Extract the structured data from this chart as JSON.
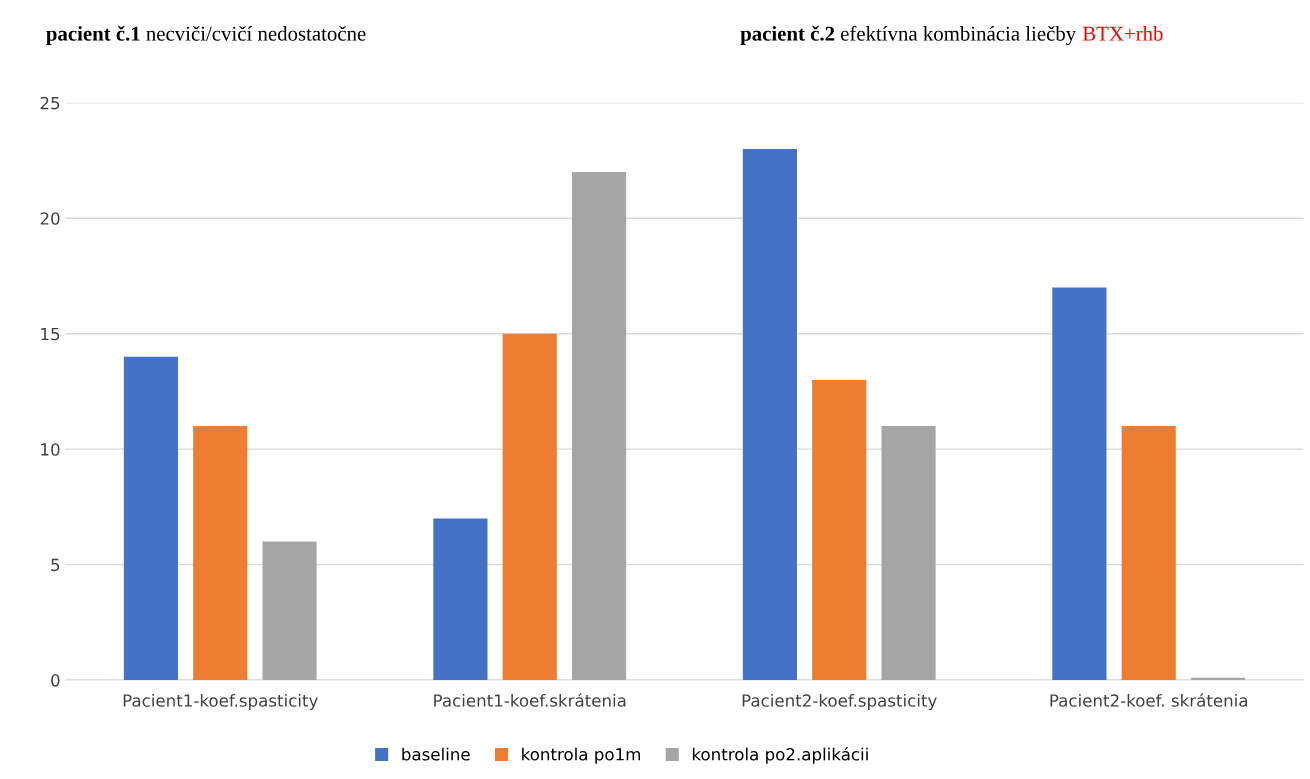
{
  "chart_data": {
    "type": "bar",
    "categories": [
      "Pacient1-koef.spasticity",
      "Pacient1-koef.skrátenia",
      "Pacient2-koef.spasticity",
      "Pacient2-koef. skrátenia"
    ],
    "series": [
      {
        "name": "baseline",
        "color": "#4472c4",
        "values": [
          14,
          7,
          23,
          17
        ]
      },
      {
        "name": "kontrola po1m",
        "color": "#ed7d31",
        "values": [
          11,
          15,
          13,
          11
        ]
      },
      {
        "name": "kontrola po2.aplikácii",
        "color": "#a5a5a5",
        "values": [
          6,
          22,
          11,
          0.1
        ]
      }
    ],
    "ylim": [
      0,
      25
    ],
    "yticks": [
      0,
      5,
      10,
      15,
      20,
      25
    ],
    "grid": "y",
    "legend": "bottom",
    "annotations": [
      "pacient č.1",
      "necviči/cvičí nedostatočne",
      "pacient č.2",
      "efektívna kombinácia liečby",
      "BTX+rhb"
    ]
  }
}
